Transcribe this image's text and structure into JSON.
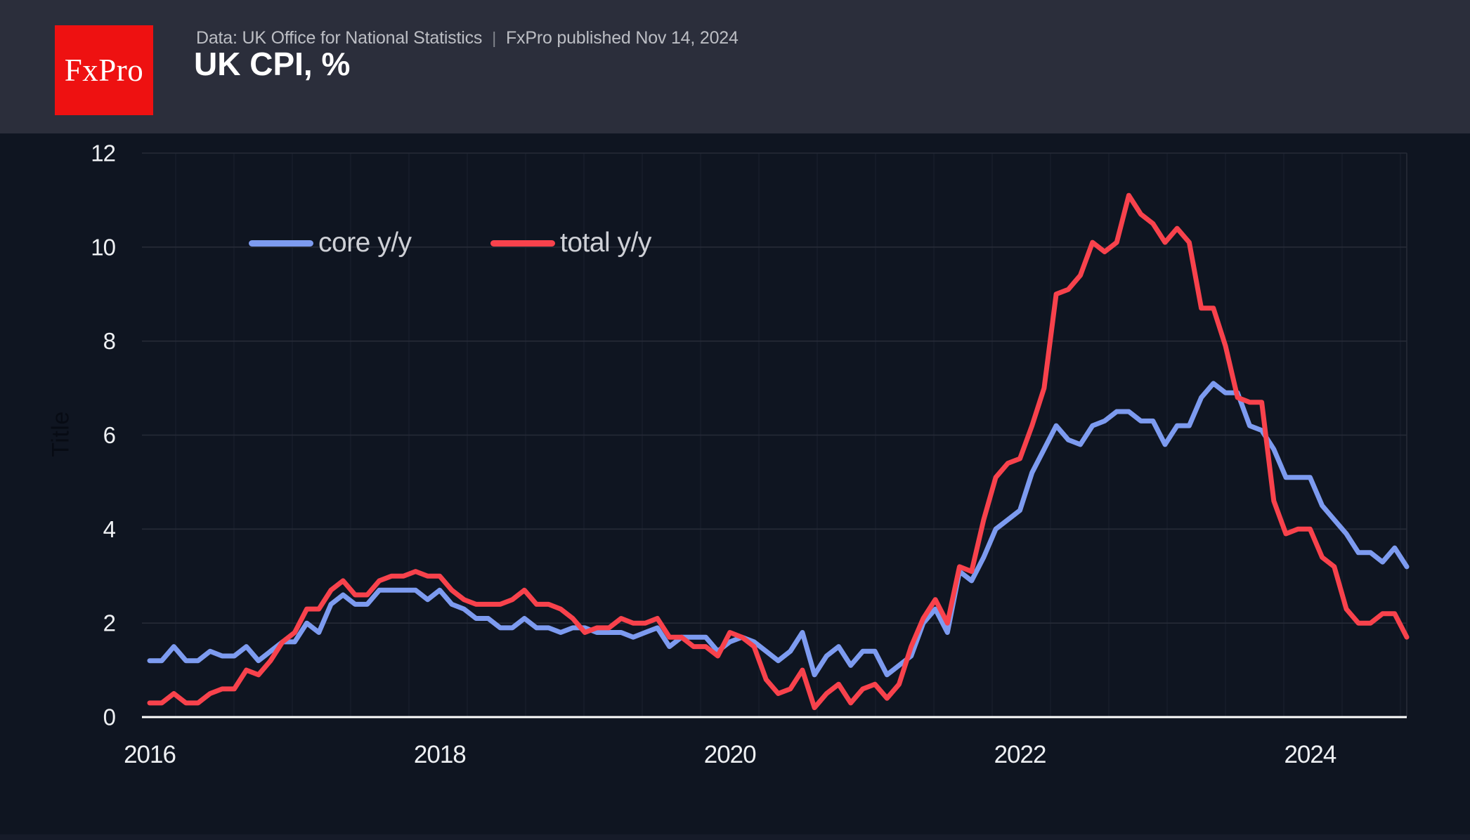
{
  "header": {
    "logo_text": "FxPro",
    "source": "Data: UK Office for National Statistics",
    "separator": "|",
    "published": "FxPro published Nov 14, 2024",
    "title": "UK CPI, %"
  },
  "axis": {
    "y_axis_title": "Title",
    "y_tick_labels": [
      "0",
      "2",
      "4",
      "6",
      "8",
      "10",
      "12"
    ],
    "x_tick_labels": [
      "2016",
      "2018",
      "2020",
      "2022",
      "2024"
    ]
  },
  "colors": {
    "page_background": "#0f1521",
    "header_background": "#2b2e3b",
    "logo_red": "#ee1111",
    "grid_line": "#262b37",
    "minor_vertical_grid": "#1b2130",
    "zero_axis_line": "#ffffff",
    "tick_label": "#eef0f3",
    "core_blue": "#7d9bf0",
    "total_red": "#f8424c"
  },
  "chart_data": {
    "type": "line",
    "title": "UK CPI, %",
    "x_unit": "month",
    "x_start": "2016-01",
    "x_end": "2024-09",
    "ylim": [
      0,
      12
    ],
    "y_ticks": [
      0,
      2,
      4,
      6,
      8,
      10,
      12
    ],
    "x_ticks": [
      {
        "label": "2016",
        "month_index": 0
      },
      {
        "label": "2018",
        "month_index": 24
      },
      {
        "label": "2020",
        "month_index": 48
      },
      {
        "label": "2022",
        "month_index": 72
      },
      {
        "label": "2024",
        "month_index": 96
      }
    ],
    "grid": true,
    "legend_position": "upper-left",
    "series": [
      {
        "name": "core y/y",
        "color": "#7d9bf0",
        "values": [
          1.2,
          1.2,
          1.5,
          1.2,
          1.2,
          1.4,
          1.3,
          1.3,
          1.5,
          1.2,
          1.4,
          1.6,
          1.6,
          2.0,
          1.8,
          2.4,
          2.6,
          2.4,
          2.4,
          2.7,
          2.7,
          2.7,
          2.7,
          2.5,
          2.7,
          2.4,
          2.3,
          2.1,
          2.1,
          1.9,
          1.9,
          2.1,
          1.9,
          1.9,
          1.8,
          1.9,
          1.9,
          1.8,
          1.8,
          1.8,
          1.7,
          1.8,
          1.9,
          1.5,
          1.7,
          1.7,
          1.7,
          1.4,
          1.6,
          1.7,
          1.6,
          1.4,
          1.2,
          1.4,
          1.8,
          0.9,
          1.3,
          1.5,
          1.1,
          1.4,
          1.4,
          0.9,
          1.1,
          1.3,
          2.0,
          2.3,
          1.8,
          3.1,
          2.9,
          3.4,
          4.0,
          4.2,
          4.4,
          5.2,
          5.7,
          6.2,
          5.9,
          5.8,
          6.2,
          6.3,
          6.5,
          6.5,
          6.3,
          6.3,
          5.8,
          6.2,
          6.2,
          6.8,
          7.1,
          6.9,
          6.9,
          6.2,
          6.1,
          5.7,
          5.1,
          5.1,
          5.1,
          4.5,
          4.2,
          3.9,
          3.5,
          3.5,
          3.3,
          3.6,
          3.2
        ]
      },
      {
        "name": "total y/y",
        "color": "#f8424c",
        "values": [
          0.3,
          0.3,
          0.5,
          0.3,
          0.3,
          0.5,
          0.6,
          0.6,
          1.0,
          0.9,
          1.2,
          1.6,
          1.8,
          2.3,
          2.3,
          2.7,
          2.9,
          2.6,
          2.6,
          2.9,
          3.0,
          3.0,
          3.1,
          3.0,
          3.0,
          2.7,
          2.5,
          2.4,
          2.4,
          2.4,
          2.5,
          2.7,
          2.4,
          2.4,
          2.3,
          2.1,
          1.8,
          1.9,
          1.9,
          2.1,
          2.0,
          2.0,
          2.1,
          1.7,
          1.7,
          1.5,
          1.5,
          1.3,
          1.8,
          1.7,
          1.5,
          0.8,
          0.5,
          0.6,
          1.0,
          0.2,
          0.5,
          0.7,
          0.3,
          0.6,
          0.7,
          0.4,
          0.7,
          1.5,
          2.1,
          2.5,
          2.0,
          3.2,
          3.1,
          4.2,
          5.1,
          5.4,
          5.5,
          6.2,
          7.0,
          9.0,
          9.1,
          9.4,
          10.1,
          9.9,
          10.1,
          11.1,
          10.7,
          10.5,
          10.1,
          10.4,
          10.1,
          8.7,
          8.7,
          7.9,
          6.8,
          6.7,
          6.7,
          4.6,
          3.9,
          4.0,
          4.0,
          3.4,
          3.2,
          2.3,
          2.0,
          2.0,
          2.2,
          2.2,
          1.7
        ]
      }
    ]
  }
}
